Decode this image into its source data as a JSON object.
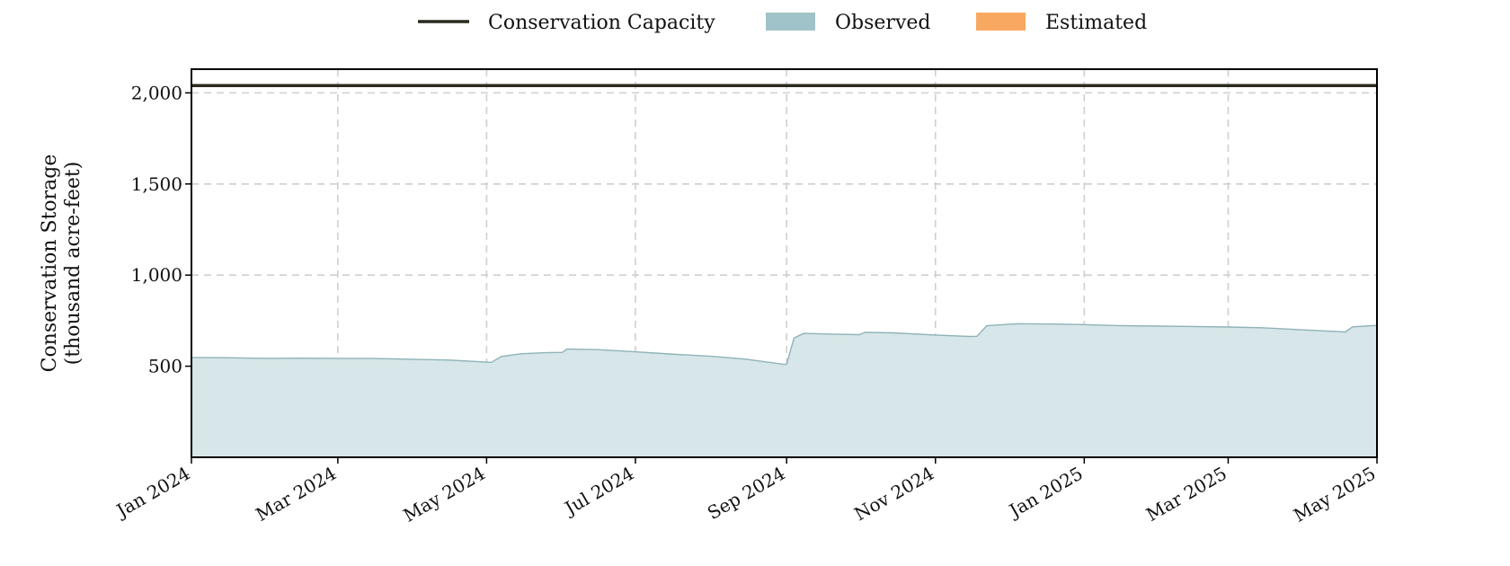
{
  "chart_data": {
    "type": "area",
    "title": "",
    "xlabel": "",
    "ylabel": "Conservation Storage",
    "ylabel_line2": "(thousand acre-feet)",
    "x_range": [
      "2024-01-01",
      "2025-05-01"
    ],
    "ylim": [
      0,
      2130
    ],
    "yticks": [
      500,
      1000,
      1500,
      2000
    ],
    "ytick_labels": [
      "500",
      "1,000",
      "1,500",
      "2,000"
    ],
    "xticks": [
      "2024-01-01",
      "2024-03-01",
      "2024-05-01",
      "2024-07-01",
      "2024-09-01",
      "2024-11-01",
      "2025-01-01",
      "2025-03-01",
      "2025-05-01"
    ],
    "xtick_labels": [
      "Jan 2024",
      "Mar 2024",
      "May 2024",
      "Jul 2024",
      "Sep 2024",
      "Nov 2024",
      "Jan 2025",
      "Mar 2025",
      "May 2025"
    ],
    "grid": true,
    "legend_position": "top-center",
    "legend": [
      {
        "label": "Conservation Capacity",
        "kind": "line",
        "color": "#2b2a1e"
      },
      {
        "label": "Observed",
        "kind": "patch",
        "color": "#9fc3c9"
      },
      {
        "label": "Estimated",
        "kind": "patch",
        "color": "#f9a862"
      }
    ],
    "capacity": 2040,
    "series": [
      {
        "name": "Observed",
        "line_color": "#8fb3b8",
        "fill_color": "#d7e6e8",
        "points": [
          [
            "2024-01-01",
            548
          ],
          [
            "2024-01-15",
            547
          ],
          [
            "2024-02-01",
            543
          ],
          [
            "2024-02-15",
            544
          ],
          [
            "2024-03-01",
            543
          ],
          [
            "2024-03-15",
            543
          ],
          [
            "2024-04-01",
            538
          ],
          [
            "2024-04-15",
            534
          ],
          [
            "2024-05-01",
            522
          ],
          [
            "2024-05-03",
            521
          ],
          [
            "2024-05-07",
            553
          ],
          [
            "2024-05-15",
            568
          ],
          [
            "2024-05-25",
            574
          ],
          [
            "2024-06-01",
            576
          ],
          [
            "2024-06-03",
            594
          ],
          [
            "2024-06-15",
            591
          ],
          [
            "2024-07-01",
            579
          ],
          [
            "2024-07-15",
            567
          ],
          [
            "2024-08-01",
            554
          ],
          [
            "2024-08-15",
            539
          ],
          [
            "2024-08-31",
            510
          ],
          [
            "2024-09-01",
            511
          ],
          [
            "2024-09-04",
            655
          ],
          [
            "2024-09-08",
            680
          ],
          [
            "2024-09-20",
            676
          ],
          [
            "2024-10-01",
            673
          ],
          [
            "2024-10-03",
            686
          ],
          [
            "2024-10-15",
            683
          ],
          [
            "2024-11-01",
            671
          ],
          [
            "2024-11-15",
            663
          ],
          [
            "2024-11-18",
            664
          ],
          [
            "2024-11-22",
            722
          ],
          [
            "2024-12-01",
            730
          ],
          [
            "2024-12-05",
            733
          ],
          [
            "2024-12-20",
            731
          ],
          [
            "2025-01-01",
            728
          ],
          [
            "2025-01-15",
            723
          ],
          [
            "2025-02-01",
            720
          ],
          [
            "2025-02-15",
            718
          ],
          [
            "2025-03-01",
            715
          ],
          [
            "2025-03-15",
            711
          ],
          [
            "2025-04-01",
            699
          ],
          [
            "2025-04-15",
            690
          ],
          [
            "2025-04-18",
            688
          ],
          [
            "2025-04-21",
            716
          ],
          [
            "2025-05-01",
            724
          ]
        ]
      },
      {
        "name": "Estimated",
        "line_color": "#f9a862",
        "fill_color": "#fbd0aa",
        "points": []
      }
    ]
  }
}
